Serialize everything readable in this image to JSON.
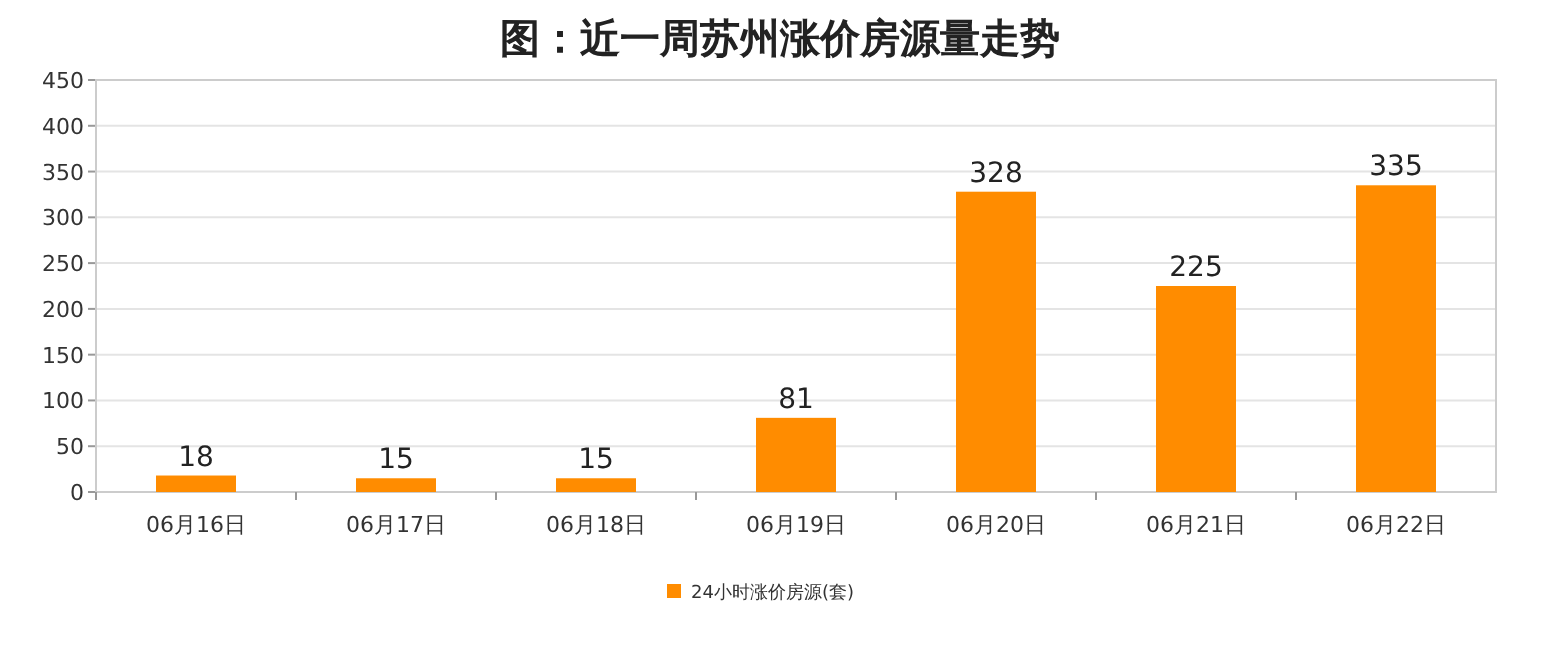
{
  "chart_data": {
    "type": "bar",
    "title": "图：近一周苏州涨价房源量走势",
    "categories": [
      "06月16日",
      "06月17日",
      "06月18日",
      "06月19日",
      "06月20日",
      "06月21日",
      "06月22日"
    ],
    "series": [
      {
        "name": "24小时涨价房源(套)",
        "color": "#ff8c00",
        "values": [
          18,
          15,
          15,
          81,
          328,
          225,
          335
        ]
      }
    ],
    "ylim": [
      0,
      450
    ],
    "yticks": [
      0,
      50,
      100,
      150,
      200,
      250,
      300,
      350,
      400,
      450
    ],
    "grid": "y",
    "legend": "bottom",
    "data_labels": true
  }
}
